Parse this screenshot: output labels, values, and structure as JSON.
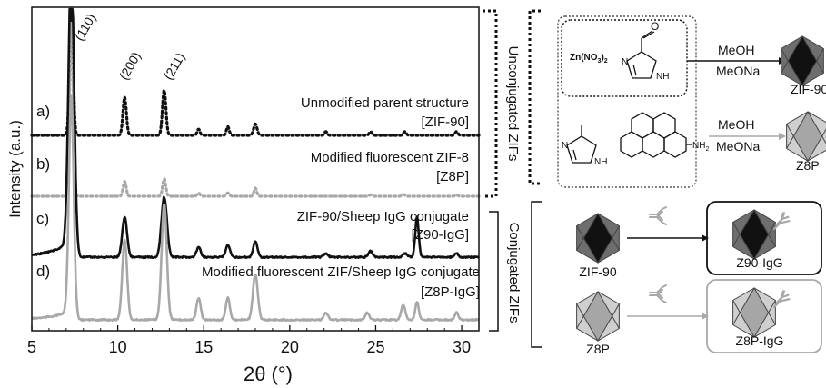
{
  "chart_data": {
    "type": "line",
    "xlabel": "2θ (°)",
    "ylabel": "Intensity (a.u.)",
    "xlim": [
      5,
      31
    ],
    "x_ticks": [
      "5",
      "10",
      "15",
      "20",
      "25",
      "30"
    ],
    "x_tick_values": [
      5,
      10,
      15,
      20,
      25,
      30
    ],
    "peak_labels": [
      "(110)",
      "(200)",
      "(211)"
    ],
    "peak_positions": [
      7.3,
      10.4,
      12.7
    ],
    "series": [
      {
        "letter": "a)",
        "line1": "Unmodified parent structure",
        "line2": "[ZIF-90]",
        "style": "dotted",
        "color": "#111111",
        "offset": 0.0,
        "peaks": [
          [
            7.3,
            1.0,
            0.1
          ],
          [
            10.4,
            0.3,
            0.1
          ],
          [
            12.7,
            0.36,
            0.1
          ],
          [
            14.7,
            0.05,
            0.08
          ],
          [
            16.4,
            0.07,
            0.08
          ],
          [
            18.0,
            0.09,
            0.1
          ],
          [
            22.1,
            0.03,
            0.08
          ],
          [
            24.7,
            0.03,
            0.08
          ],
          [
            26.7,
            0.03,
            0.08
          ],
          [
            29.7,
            0.03,
            0.08
          ]
        ]
      },
      {
        "letter": "b)",
        "line1": "Modified fluorescent ZIF-8",
        "line2": "[Z8P]",
        "style": "dotted",
        "color": "#a8a8a8",
        "offset": 0.0,
        "peaks": [
          [
            7.3,
            2.6,
            0.1
          ],
          [
            10.4,
            0.22,
            0.09
          ],
          [
            12.7,
            0.26,
            0.09
          ],
          [
            14.7,
            0.05,
            0.08
          ],
          [
            16.4,
            0.05,
            0.08
          ],
          [
            18.0,
            0.12,
            0.08
          ],
          [
            24.7,
            0.02,
            0.08
          ],
          [
            26.6,
            0.03,
            0.08
          ],
          [
            29.7,
            0.02,
            0.08
          ]
        ]
      },
      {
        "letter": "c)",
        "line1": "ZIF-90/Sheep IgG conjugate",
        "line2": "[Z90-IgG]",
        "style": "solid",
        "color": "#111111",
        "offset": 0.0,
        "peaks": [
          [
            7.3,
            1.45,
            0.16
          ],
          [
            10.4,
            0.2,
            0.14
          ],
          [
            12.7,
            0.3,
            0.16
          ],
          [
            14.7,
            0.05,
            0.12
          ],
          [
            16.4,
            0.06,
            0.12
          ],
          [
            18.0,
            0.08,
            0.12
          ],
          [
            22.1,
            0.02,
            0.12
          ],
          [
            24.7,
            0.03,
            0.12
          ],
          [
            26.7,
            0.02,
            0.12
          ],
          [
            27.4,
            0.2,
            0.1
          ],
          [
            29.7,
            0.02,
            0.1
          ]
        ]
      },
      {
        "letter": "d)",
        "line1": "Modified fluorescent ZIF/Sheep IgG conjugate",
        "line2": "[Z8P-IgG]",
        "style": "solid",
        "color": "#a8a8a8",
        "offset": 0.0,
        "peaks": [
          [
            7.3,
            1.2,
            0.14
          ],
          [
            10.4,
            0.44,
            0.14
          ],
          [
            12.7,
            0.64,
            0.15
          ],
          [
            14.7,
            0.12,
            0.12
          ],
          [
            16.4,
            0.12,
            0.12
          ],
          [
            18.0,
            0.25,
            0.14
          ],
          [
            22.1,
            0.04,
            0.12
          ],
          [
            24.5,
            0.04,
            0.12
          ],
          [
            26.6,
            0.08,
            0.12
          ],
          [
            27.4,
            0.1,
            0.1
          ],
          [
            29.7,
            0.04,
            0.1
          ]
        ]
      }
    ]
  },
  "brackets": {
    "unconjugated": "Unconjugated ZIFs",
    "conjugated": "Conjugated ZIFs"
  },
  "scheme": {
    "zn": "Zn(NO",
    "zn_sub3": "3",
    "zn_sub2": "2",
    "nh": "NH",
    "nh2": "NH2",
    "meoh1": "MeOH",
    "meona1": "MeONa",
    "zif90_top": "ZIF-90",
    "meoh2": "MeOH",
    "meona2": "MeONa",
    "z8p_top": "Z8P",
    "zif90_label": "ZIF-90",
    "z90igg_label": "Z90-IgG",
    "z8p_label": "Z8P",
    "z8pigg_label": "Z8P-IgG",
    "dark_fill": "#6e6e6e",
    "dark_core": "#111111",
    "light_fill": "#cfcfcf",
    "light_core": "#a6a6a6"
  }
}
